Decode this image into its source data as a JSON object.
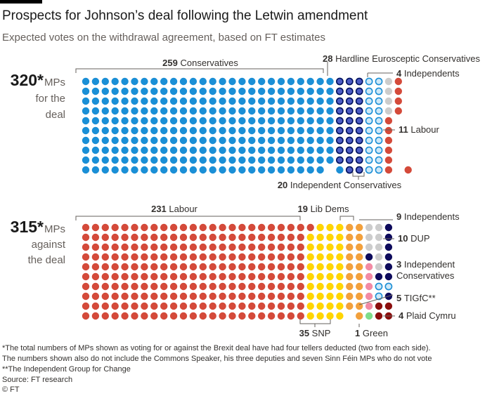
{
  "header": {
    "title": "Prospects for Johnson’s deal following the Letwin amendment",
    "subtitle": "Expected votes on the withdrawal agreement, based on FT estimates"
  },
  "chart_data": {
    "type": "dot-matrix",
    "colors": {
      "conservatives": "#1b8fd6",
      "hardline_eurosceptic": "#4b5bc4",
      "hardline_ring": "#00125e",
      "independent_conservatives_ring": "#1b8fd6",
      "independent_conservatives_fill": "#cfe8f7",
      "independents": "#cccccc",
      "labour": "#d44a3a",
      "lib_dems": "#f2a03c",
      "snp": "#ffd500",
      "dup": "#0e0b5c",
      "tigfc": "#f28aa4",
      "plaid_cymru": "#8b0e0e",
      "green": "#7fdc8a"
    },
    "for_the_deal": {
      "total": "320*",
      "label_line1": "MPs",
      "label_line2": "for the",
      "label_line3": "deal",
      "groups": [
        {
          "name": "Conservatives",
          "count": 259
        },
        {
          "name": "Hardline Eurosceptic Conservatives",
          "count": 28
        },
        {
          "name": "Independent Conservatives",
          "count": 20
        },
        {
          "name": "Independents",
          "count": 4
        },
        {
          "name": "Labour",
          "count": 11
        }
      ]
    },
    "against_the_deal": {
      "total": "315*",
      "label_line1": "MPs",
      "label_line2": "against",
      "label_line3": "the deal",
      "groups": [
        {
          "name": "Labour",
          "count": 231
        },
        {
          "name": "SNP",
          "count": 35
        },
        {
          "name": "Lib Dems",
          "count": 19
        },
        {
          "name": "Independents",
          "count": 9
        },
        {
          "name": "TIGfC",
          "count": 5
        },
        {
          "name": "Green",
          "count": 1
        },
        {
          "name": "DUP",
          "count": 10
        },
        {
          "name": "Independent Conservatives",
          "count": 3
        },
        {
          "name": "Plaid Cymru",
          "count": 4
        }
      ]
    },
    "annotations": {
      "for_conservatives": {
        "num": "259",
        "text": "Conservatives"
      },
      "for_hardline": {
        "num": "28",
        "text": "Hardline Eurosceptic Conservatives"
      },
      "for_independents": {
        "num": "4",
        "text": "Independents"
      },
      "for_labour": {
        "num": "11",
        "text": "Labour"
      },
      "for_indcons": {
        "num": "20",
        "text": "Independent Conservatives"
      },
      "ag_labour": {
        "num": "231",
        "text": "Labour"
      },
      "ag_libdems": {
        "num": "19",
        "text": "Lib Dems"
      },
      "ag_independents": {
        "num": "9",
        "text": "Independents"
      },
      "ag_dup": {
        "num": "10",
        "text": "DUP"
      },
      "ag_indcons": {
        "num": "3",
        "text": "Independent",
        "text2": "Conservatives"
      },
      "ag_tigfc": {
        "num": "5",
        "text": "TIGfC**"
      },
      "ag_plaid": {
        "num": "4",
        "text": "Plaid Cymru"
      },
      "ag_snp": {
        "num": "35",
        "text": "SNP"
      },
      "ag_green": {
        "num": "1",
        "text": "Green"
      }
    }
  },
  "footer": {
    "note1": "*The total numbers of MPs shown as voting for or against the Brexit deal have had four tellers deducted (two from each side).",
    "note2": "The numbers shown also do not include the Commons Speaker, his three deputies and seven Sinn Féin MPs who do not vote",
    "note3": "**The Independent Group for Change",
    "source": "Source: FT research",
    "credit": "© FT"
  }
}
